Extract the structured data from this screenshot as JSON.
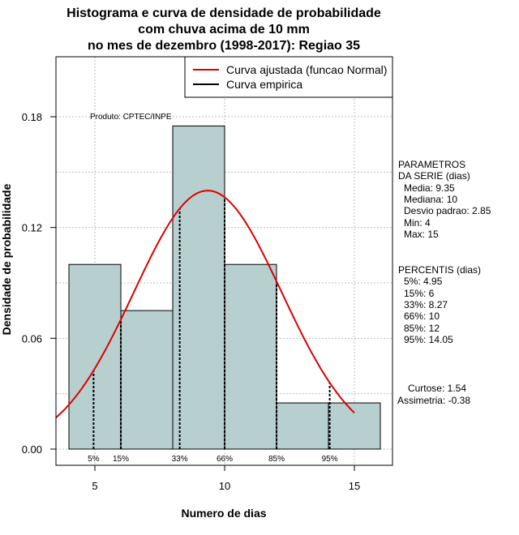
{
  "chart_data": {
    "type": "histogram",
    "title_lines": [
      "Histograma e curva de densidade de probabilidade",
      "com chuva acima de 10 mm",
      "no mes de dezembro (1998-2017): Regiao 35"
    ],
    "xlabel": "Numero de dias",
    "ylabel": "Densidade de probabilidade",
    "xlim": [
      3.5,
      16.5
    ],
    "ylim": [
      0,
      0.21
    ],
    "x_ticks": [
      5,
      10,
      15
    ],
    "x_tick_labels": [
      "5",
      "10",
      "15"
    ],
    "y_ticks": [
      0.0,
      0.06,
      0.12,
      0.18
    ],
    "y_tick_labels": [
      "0.00",
      "0.06",
      "0.12",
      "0.18"
    ],
    "grid": true,
    "bins": [
      {
        "from": 4,
        "to": 6,
        "density": 0.1
      },
      {
        "from": 6,
        "to": 8,
        "density": 0.075
      },
      {
        "from": 8,
        "to": 10,
        "density": 0.175
      },
      {
        "from": 10,
        "to": 12,
        "density": 0.1
      },
      {
        "from": 12,
        "to": 14,
        "density": 0.025
      },
      {
        "from": 14,
        "to": 16,
        "density": 0.025
      }
    ],
    "normal_curve": {
      "mean": 9.35,
      "sd": 2.85,
      "x_from": 3.5,
      "x_to": 15
    },
    "empirical_curve": [],
    "percentile_lines": [
      {
        "label": "5%",
        "x": 4.95
      },
      {
        "label": "15%",
        "x": 6
      },
      {
        "label": "33%",
        "x": 8.27
      },
      {
        "label": "66%",
        "x": 10
      },
      {
        "label": "85%",
        "x": 12
      },
      {
        "label": "95%",
        "x": 14.05
      }
    ],
    "legend": [
      {
        "label": "Curva ajustada (funcao Normal)",
        "color": "#dd0000"
      },
      {
        "label": "Curva empirica",
        "color": "#000000"
      }
    ],
    "legend_position": "top-right",
    "annotation": "Produto: CPTEC/INPE",
    "bar_color": "#b7cfcf",
    "curve_color": "#dd0000"
  },
  "side_panel": {
    "params_lines": [
      "PARAMETROS",
      "DA SERIE (dias)",
      "Media: 9.35",
      "Mediana: 10",
      "Desvio padrao: 2.85",
      "Min: 4",
      "Max: 15"
    ],
    "percentis_lines": [
      "PERCENTIS (dias)",
      "5%: 4.95",
      "15%: 6",
      "33%: 8.27",
      "66%: 10",
      "85%: 12",
      "95%: 14.05"
    ],
    "shape_lines": [
      "Curtose: 1.54",
      "Assimetria: -0.38"
    ]
  }
}
